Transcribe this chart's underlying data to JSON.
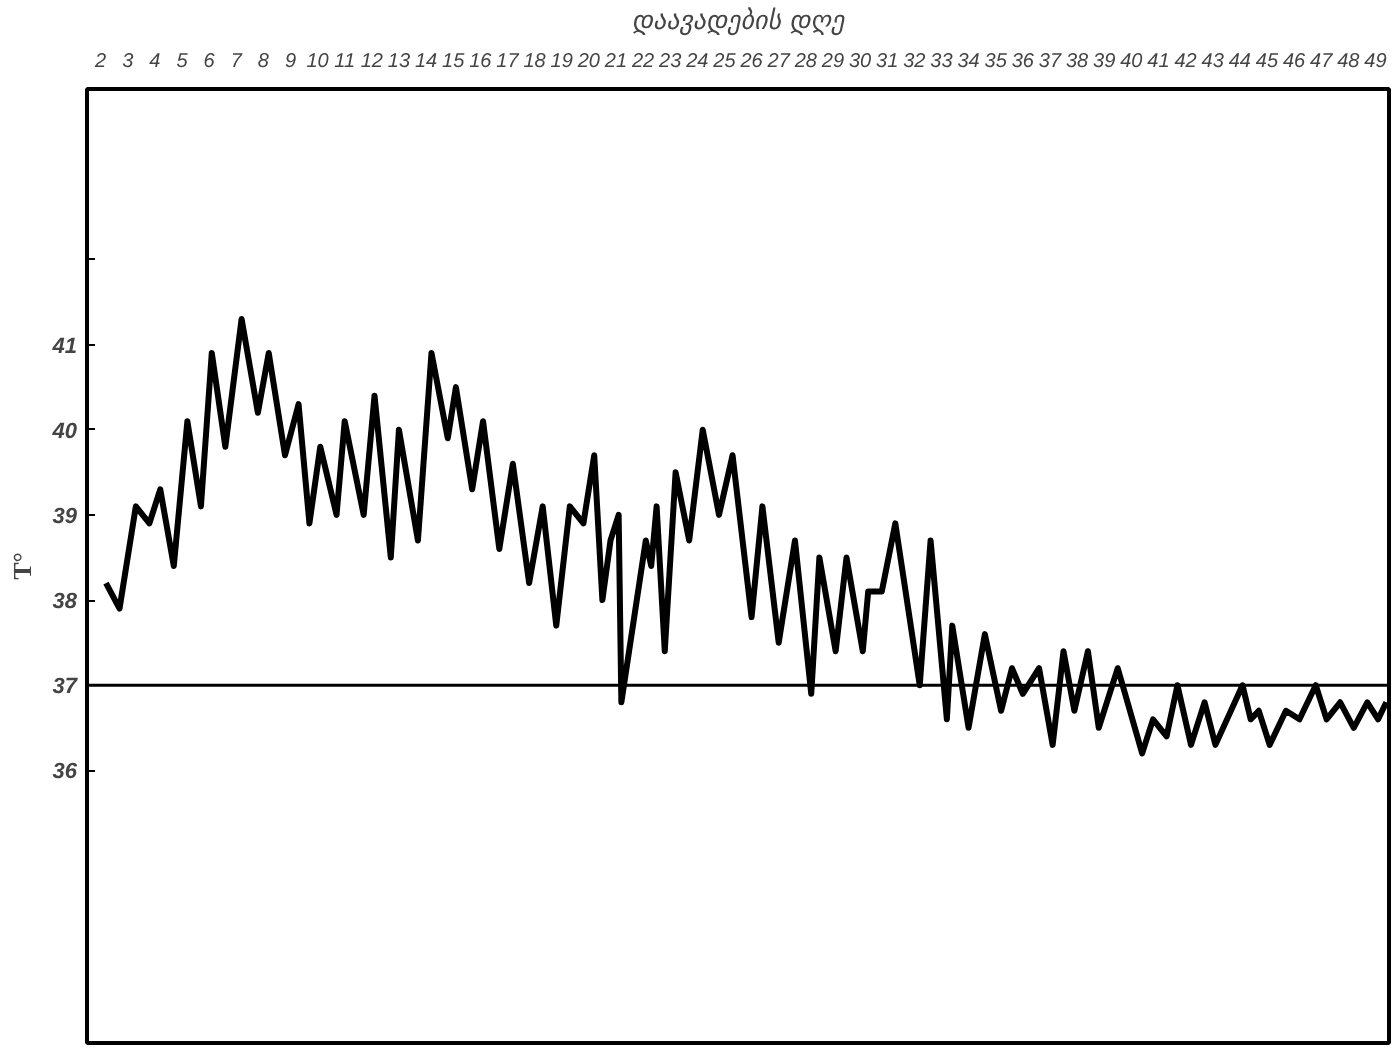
{
  "chart_data": {
    "type": "line",
    "xlabel": "დაავადების დღე",
    "ylabel": "T°",
    "xlim": [
      1.5,
      49.5
    ],
    "xticks": [
      2,
      3,
      4,
      5,
      6,
      7,
      8,
      9,
      10,
      11,
      12,
      13,
      14,
      15,
      16,
      17,
      18,
      19,
      20,
      21,
      22,
      23,
      24,
      25,
      26,
      27,
      28,
      29,
      30,
      31,
      32,
      33,
      34,
      35,
      36,
      37,
      38,
      39,
      40,
      41,
      42,
      43,
      44,
      45,
      46,
      47,
      48,
      49
    ],
    "ylim": [
      32.8,
      44.0
    ],
    "yticks": [
      36,
      37,
      38,
      39,
      40,
      41,
      {
        "value": 42,
        "label": null
      }
    ],
    "grid": false,
    "marker": "none",
    "line_style": "solid",
    "ref_lines": [
      {
        "axis": "y",
        "value": 37,
        "color": "#000000"
      }
    ],
    "series": [
      {
        "color": "#000000",
        "x": [
          2.2,
          2.7,
          3.3,
          3.8,
          4.2,
          4.7,
          5.2,
          5.7,
          6.1,
          6.6,
          7.2,
          7.8,
          8.2,
          8.8,
          9.3,
          9.7,
          10.1,
          10.7,
          11.0,
          11.7,
          12.1,
          12.7,
          13.0,
          13.7,
          14.2,
          14.8,
          15.1,
          15.7,
          16.1,
          16.7,
          17.2,
          17.8,
          18.3,
          18.8,
          19.3,
          19.8,
          20.2,
          20.5,
          20.8,
          21.1,
          21.2,
          22.1,
          22.3,
          22.5,
          22.8,
          23.2,
          23.7,
          24.2,
          24.8,
          25.3,
          26.0,
          26.4,
          27.0,
          27.6,
          28.2,
          28.5,
          29.1,
          29.5,
          30.1,
          30.3,
          30.8,
          31.3,
          32.2,
          32.6,
          33.2,
          33.4,
          34.0,
          34.6,
          35.2,
          35.6,
          36.0,
          36.6,
          37.1,
          37.5,
          37.9,
          38.4,
          38.8,
          39.5,
          40.4,
          40.8,
          41.3,
          41.7,
          42.2,
          42.7,
          43.1,
          44.1,
          44.4,
          44.7,
          45.1,
          45.7,
          46.2,
          46.8,
          47.2,
          47.7,
          48.2,
          48.7,
          49.1,
          49.4
        ],
        "values": [
          38.2,
          37.9,
          39.1,
          38.9,
          39.3,
          38.4,
          40.1,
          39.1,
          40.9,
          39.8,
          41.3,
          40.2,
          40.9,
          39.7,
          40.3,
          38.9,
          39.8,
          39.0,
          40.1,
          39.0,
          40.4,
          38.5,
          40.0,
          38.7,
          40.9,
          39.9,
          40.5,
          39.3,
          40.1,
          38.6,
          39.6,
          38.2,
          39.1,
          37.7,
          39.1,
          38.9,
          39.7,
          38.0,
          38.7,
          39.0,
          36.8,
          38.7,
          38.4,
          39.1,
          37.4,
          39.5,
          38.7,
          40.0,
          39.0,
          39.7,
          37.8,
          39.1,
          37.5,
          38.7,
          36.9,
          38.5,
          37.4,
          38.5,
          37.4,
          38.1,
          38.1,
          38.9,
          37.0,
          38.7,
          36.6,
          37.7,
          36.5,
          37.6,
          36.7,
          37.2,
          36.9,
          37.2,
          36.3,
          37.4,
          36.7,
          37.4,
          36.5,
          37.2,
          36.2,
          36.6,
          36.4,
          37.0,
          36.3,
          36.8,
          36.3,
          37.0,
          36.6,
          36.7,
          36.3,
          36.7,
          36.6,
          37.0,
          36.6,
          36.8,
          36.5,
          36.8,
          36.6,
          36.8
        ]
      }
    ]
  }
}
